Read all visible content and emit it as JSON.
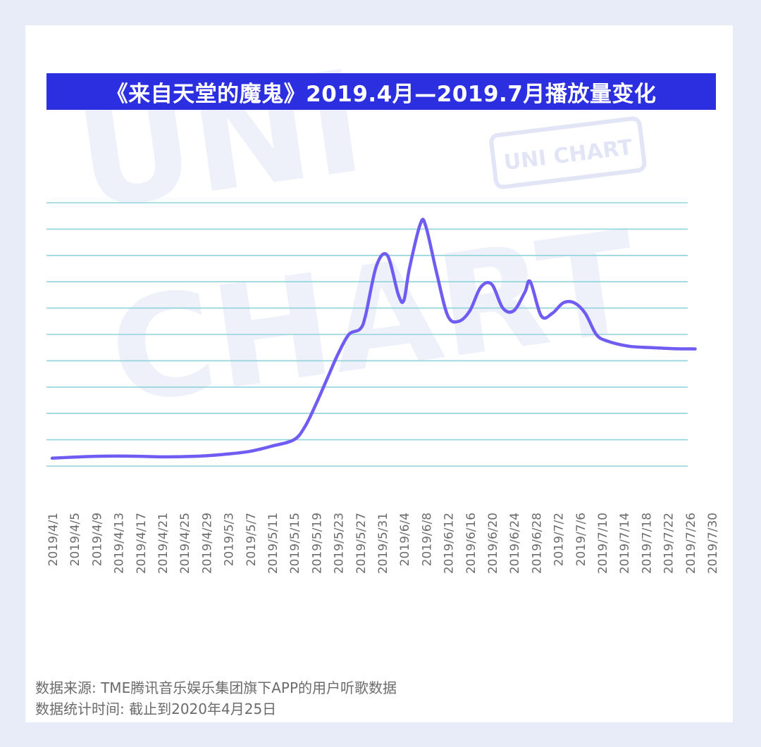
{
  "colors": {
    "background": "#e8ecf8",
    "card": "#ffffff",
    "title_bar": "#2b2fe0",
    "title_text": "#ffffff",
    "line": "#6f5cf2",
    "grid": "#8fd3dc",
    "axis_text": "#6b6b6b",
    "watermark": "#eef0fa"
  },
  "watermark": {
    "big_text_1": "UNI",
    "big_text_2": "CHART",
    "stamp_text": "UNI CHART"
  },
  "footer": {
    "source": "数据来源: TME腾讯音乐娱乐集团旗下APP的用户听歌数据",
    "stat_time": "数据统计时间: 截止到2020年4月25日"
  },
  "chart_data": {
    "type": "line",
    "title": "《来自天堂的魔鬼》2019.4月—2019.7月播放量变化",
    "xlabel": "",
    "ylabel": "",
    "grid": true,
    "legend": "none",
    "y_axis_labels_shown": false,
    "ylim": [
      0,
      10
    ],
    "x_tick_labels": [
      "2019/4/1",
      "2019/4/5",
      "2019/4/9",
      "2019/4/13",
      "2019/4/17",
      "2019/4/21",
      "2019/4/25",
      "2019/4/29",
      "2019/5/3",
      "2019/5/7",
      "2019/5/11",
      "2019/5/15",
      "2019/5/19",
      "2019/5/23",
      "2019/5/27",
      "2019/5/31",
      "2019/6/4",
      "2019/6/8",
      "2019/6/12",
      "2019/6/16",
      "2019/6/20",
      "2019/6/24",
      "2019/6/28",
      "2019/7/2",
      "2019/7/6",
      "2019/7/10",
      "2019/7/14",
      "2019/7/18",
      "2019/7/22",
      "2019/7/26",
      "2019/7/30"
    ],
    "series": [
      {
        "x": [
          "2019/4/1",
          "2019/4/5",
          "2019/4/9",
          "2019/4/13",
          "2019/4/17",
          "2019/4/21",
          "2019/4/25",
          "2019/4/29",
          "2019/5/3",
          "2019/5/7",
          "2019/5/11",
          "2019/5/15",
          "2019/5/17",
          "2019/5/19",
          "2019/5/21",
          "2019/5/23",
          "2019/5/25",
          "2019/5/27",
          "2019/5/28",
          "2019/5/30",
          "2019/6/1",
          "2019/6/3",
          "2019/6/4",
          "2019/6/5",
          "2019/6/7",
          "2019/6/8",
          "2019/6/10",
          "2019/6/12",
          "2019/6/14",
          "2019/6/16",
          "2019/6/18",
          "2019/6/20",
          "2019/6/22",
          "2019/6/24",
          "2019/6/26",
          "2019/6/27",
          "2019/6/29",
          "2019/7/1",
          "2019/7/3",
          "2019/7/5",
          "2019/7/7",
          "2019/7/9",
          "2019/7/11",
          "2019/7/15",
          "2019/7/19",
          "2019/7/23",
          "2019/7/27"
        ],
        "values": [
          0.3,
          0.34,
          0.37,
          0.38,
          0.37,
          0.35,
          0.36,
          0.39,
          0.46,
          0.56,
          0.76,
          1.0,
          1.5,
          2.35,
          3.3,
          4.25,
          5.0,
          5.2,
          5.7,
          7.6,
          8.0,
          6.5,
          6.3,
          7.5,
          9.2,
          9.1,
          7.3,
          5.7,
          5.5,
          5.9,
          6.8,
          6.9,
          6.0,
          5.9,
          6.6,
          7.0,
          5.7,
          5.8,
          6.2,
          6.2,
          5.8,
          5.0,
          4.75,
          4.55,
          4.5,
          4.46,
          4.45
        ]
      }
    ]
  }
}
